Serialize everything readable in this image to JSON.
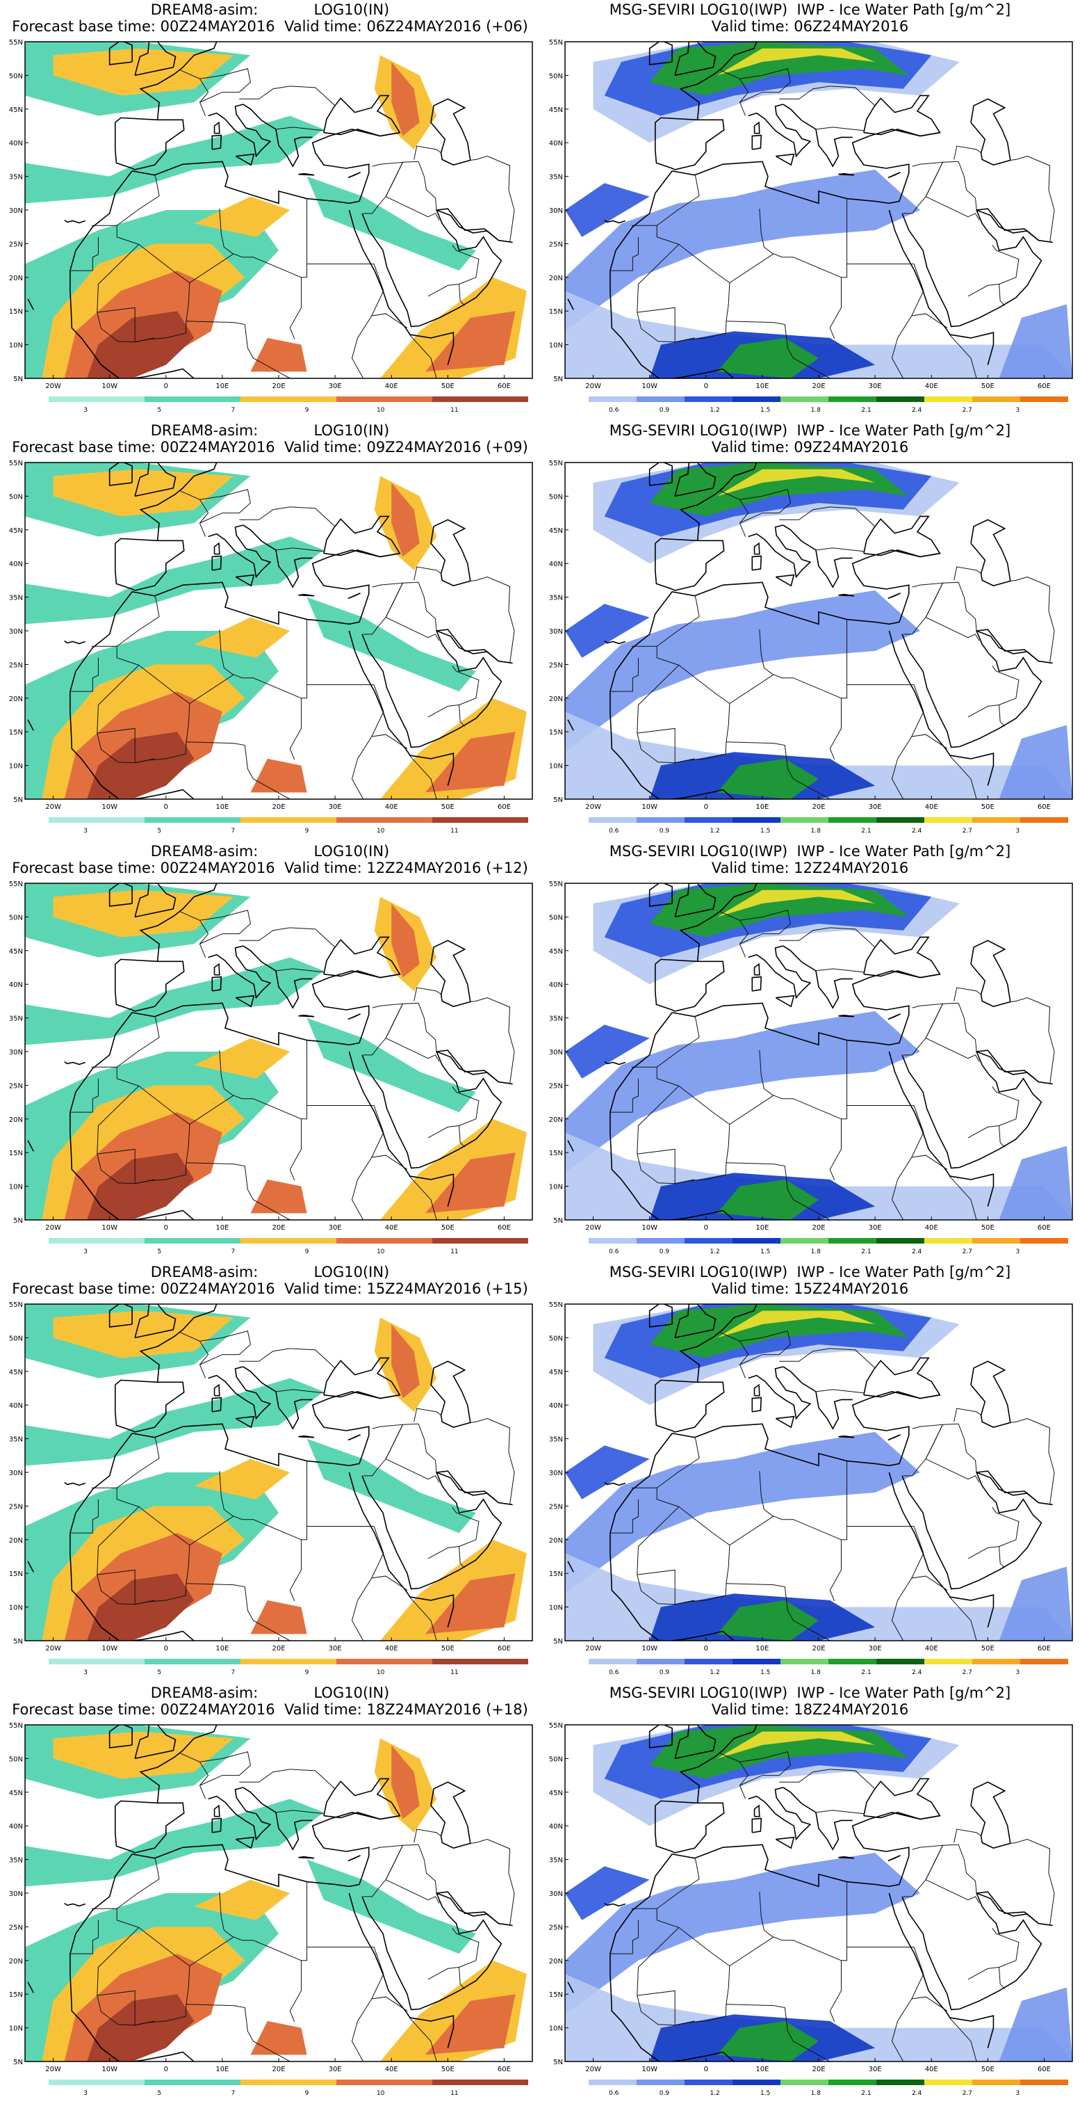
{
  "model_panel": {
    "title_line1": "DREAM8-asim:            LOG10(IN)",
    "base_time_text": "Forecast base time: 00Z24MAY2016",
    "colorbar_labels": [
      "3",
      "5",
      "7",
      "9",
      "10",
      "11"
    ],
    "colorbar_colors": [
      "#a8ecdc",
      "#5cd6b2",
      "#f8c238",
      "#e2703e",
      "#a5412c"
    ]
  },
  "sat_panel": {
    "title_line1": "MSG-SEVIRI LOG10(IWP)  IWP - Ice Water Path [g/m^2]",
    "colorbar_labels": [
      "0.6",
      "0.9",
      "1.2",
      "1.5",
      "1.8",
      "2.1",
      "2.4",
      "2.7",
      "3"
    ],
    "colorbar_colors": [
      "#b4c8f2",
      "#7797ee",
      "#2f58de",
      "#1139c4",
      "#6fd468",
      "#1ea028",
      "#0a6410",
      "#f4e22e",
      "#f6a81f",
      "#ee7214"
    ]
  },
  "map_axes": {
    "lon_labels": [
      "20W",
      "10W",
      "0",
      "10E",
      "20E",
      "30E",
      "40E",
      "50E",
      "60E"
    ],
    "lat_labels": [
      "55N",
      "50N",
      "45N",
      "40N",
      "35N",
      "30N",
      "25N",
      "20N",
      "15N",
      "10N",
      "5N"
    ]
  },
  "rows": [
    {
      "model_valid": "Valid time: 06Z24MAY2016 (+06)",
      "sat_valid": "Valid time: 06Z24MAY2016"
    },
    {
      "model_valid": "Valid time: 09Z24MAY2016 (+09)",
      "sat_valid": "Valid time: 09Z24MAY2016"
    },
    {
      "model_valid": "Valid time: 12Z24MAY2016 (+12)",
      "sat_valid": "Valid time: 12Z24MAY2016"
    },
    {
      "model_valid": "Valid time: 15Z24MAY2016 (+15)",
      "sat_valid": "Valid time: 15Z24MAY2016"
    },
    {
      "model_valid": "Valid time: 18Z24MAY2016 (+18)",
      "sat_valid": "Valid time: 18Z24MAY2016"
    }
  ]
}
